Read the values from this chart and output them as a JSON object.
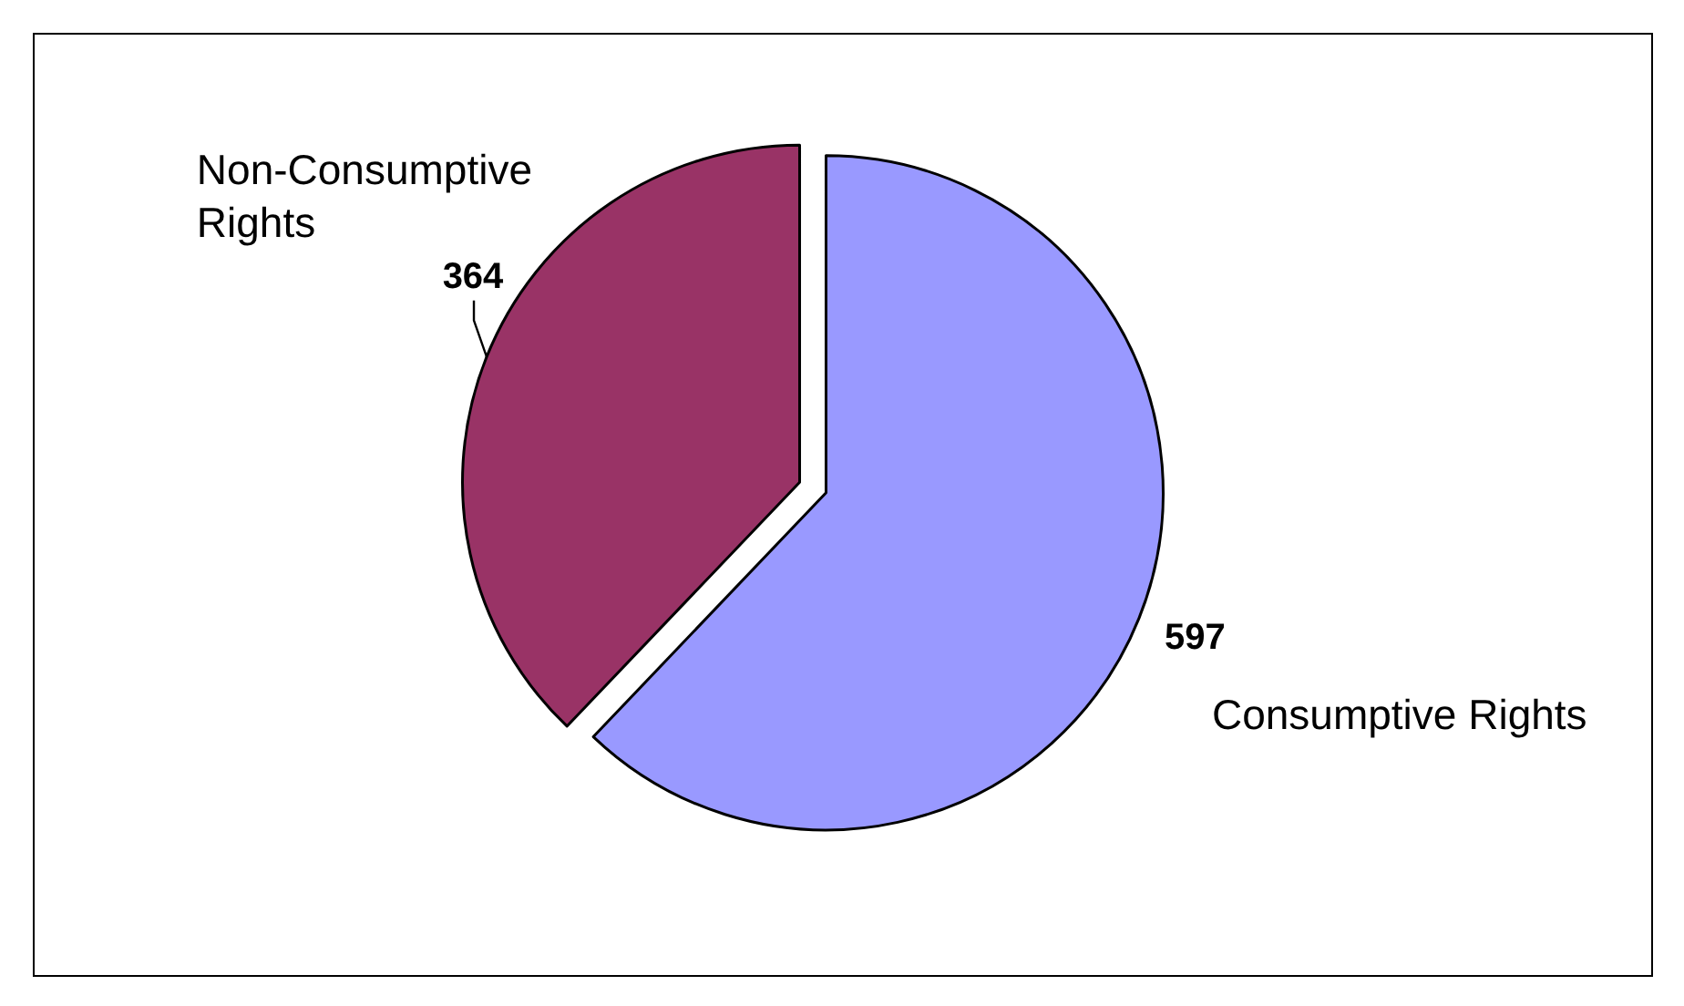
{
  "chart_data": {
    "type": "pie",
    "categories": [
      "Consumptive Rights",
      "Non-Consumptive Rights"
    ],
    "values": [
      597,
      364
    ],
    "colors": [
      "#9999ff",
      "#993366"
    ],
    "data_labels": true
  }
}
